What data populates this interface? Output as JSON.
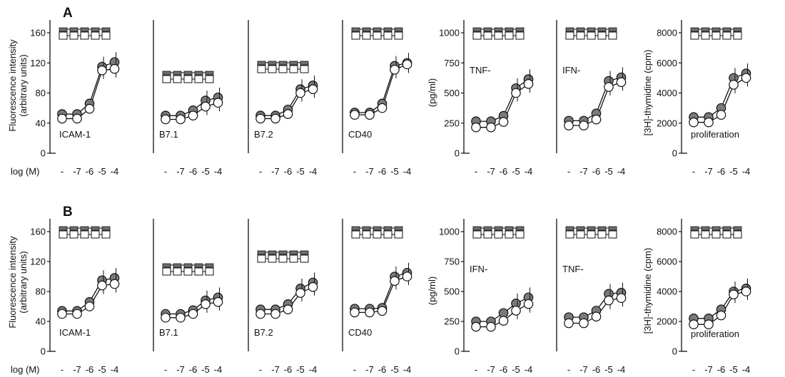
{
  "xlabel_prefix": "log (M)",
  "x_tick_labels": [
    "-",
    "-7",
    "-6",
    "-5",
    "-4"
  ],
  "row_labels": [
    "A",
    "B"
  ],
  "y_axis_labels": {
    "fluorescence_line1": "Fluorescence intensity",
    "fluorescence_line2": "(arbitrary units)",
    "cytokine": "(pg/ml)",
    "thymidine": "[3H]-thymidine (cpm)"
  },
  "chart_data": [
    {
      "type": "line",
      "row": "A",
      "panel_label": "ICAM-1",
      "ylim": [
        0,
        160
      ],
      "ytick_labels": [
        "0",
        "40",
        "80",
        "120",
        "160"
      ],
      "x": [
        "-",
        "-7",
        "-6",
        "-5",
        "-4"
      ],
      "series": [
        {
          "marker": "filled-circle",
          "values": [
            52,
            52,
            66,
            115,
            121
          ]
        },
        {
          "marker": "open-circle",
          "values": [
            46,
            46,
            59,
            110,
            112
          ]
        }
      ],
      "box_row": {
        "filled": [
          1,
          1,
          1,
          1,
          1
        ],
        "open": [
          1,
          1,
          1,
          1,
          1
        ]
      }
    },
    {
      "type": "line",
      "row": "A",
      "panel_label": "B7.1",
      "ylim": [
        0,
        160
      ],
      "ytick_labels": [
        "0",
        "40",
        "80",
        "120",
        "160"
      ],
      "x": [
        "-",
        "-7",
        "-6",
        "-5",
        "-4"
      ],
      "series": [
        {
          "marker": "filled-circle",
          "values": [
            50,
            50,
            57,
            70,
            74
          ]
        },
        {
          "marker": "open-circle",
          "values": [
            45,
            45,
            50,
            62,
            67
          ]
        }
      ],
      "box_row": {
        "filled": [
          1,
          1,
          1,
          1,
          1
        ],
        "open": [
          1,
          1,
          1,
          1,
          1
        ]
      }
    },
    {
      "type": "line",
      "row": "A",
      "panel_label": "B7.2",
      "ylim": [
        0,
        160
      ],
      "ytick_labels": [
        "0",
        "40",
        "80",
        "120",
        "160"
      ],
      "x": [
        "-",
        "-7",
        "-6",
        "-5",
        "-4"
      ],
      "series": [
        {
          "marker": "filled-circle",
          "values": [
            50,
            50,
            58,
            85,
            90
          ]
        },
        {
          "marker": "open-circle",
          "values": [
            46,
            46,
            52,
            80,
            85
          ]
        }
      ],
      "box_row": {
        "filled": [
          1,
          1,
          1,
          1,
          1
        ],
        "open": [
          1,
          1,
          1,
          1,
          1
        ]
      }
    },
    {
      "type": "line",
      "row": "A",
      "panel_label": "CD40",
      "ylim": [
        0,
        160
      ],
      "ytick_labels": [
        "0",
        "40",
        "80",
        "120",
        "160"
      ],
      "x": [
        "-",
        "-7",
        "-6",
        "-5",
        "-4"
      ],
      "series": [
        {
          "marker": "filled-circle",
          "values": [
            54,
            54,
            66,
            116,
            120
          ]
        },
        {
          "marker": "open-circle",
          "values": [
            51,
            51,
            60,
            111,
            118
          ]
        }
      ],
      "box_row": {
        "filled": [
          1,
          1,
          1,
          1,
          1
        ],
        "open": [
          1,
          1,
          1,
          1,
          1
        ]
      }
    },
    {
      "type": "line",
      "row": "A",
      "panel_label": "TNF-",
      "ylim": [
        0,
        1000
      ],
      "ytick_labels": [
        "0",
        "250",
        "500",
        "750",
        "1000"
      ],
      "x": [
        "-",
        "-7",
        "-6",
        "-5",
        "-4"
      ],
      "series": [
        {
          "marker": "filled-circle",
          "values": [
            265,
            265,
            310,
            540,
            615
          ]
        },
        {
          "marker": "open-circle",
          "values": [
            215,
            215,
            260,
            500,
            575
          ]
        }
      ],
      "box_row": {
        "filled": [
          1,
          1,
          1,
          1,
          1
        ],
        "open": [
          1,
          1,
          1,
          1,
          1
        ]
      }
    },
    {
      "type": "line",
      "row": "A",
      "panel_label": "IFN-",
      "ylim": [
        0,
        1000
      ],
      "ytick_labels": [
        "0",
        "250",
        "500",
        "750",
        "1000"
      ],
      "x": [
        "-",
        "-7",
        "-6",
        "-5",
        "-4"
      ],
      "series": [
        {
          "marker": "filled-circle",
          "values": [
            270,
            270,
            330,
            600,
            630
          ]
        },
        {
          "marker": "open-circle",
          "values": [
            230,
            230,
            280,
            550,
            590
          ]
        }
      ],
      "box_row": {
        "filled": [
          1,
          1,
          1,
          1,
          1
        ],
        "open": [
          1,
          1,
          1,
          1,
          1
        ]
      }
    },
    {
      "type": "line",
      "row": "A",
      "panel_label": "proliferation",
      "ylim": [
        0,
        8000
      ],
      "ytick_labels": [
        "0",
        "2000",
        "4000",
        "6000",
        "8000"
      ],
      "x": [
        "-",
        "-7",
        "-6",
        "-5",
        "-4"
      ],
      "series": [
        {
          "marker": "filled-circle",
          "values": [
            2400,
            2400,
            3000,
            5000,
            5300
          ]
        },
        {
          "marker": "open-circle",
          "values": [
            2050,
            2050,
            2550,
            4550,
            5000
          ]
        }
      ],
      "box_row": {
        "filled": [
          1,
          1,
          1,
          1,
          1
        ],
        "open": [
          1,
          1,
          1,
          1,
          1
        ]
      }
    },
    {
      "type": "line",
      "row": "B",
      "panel_label": "ICAM-1",
      "ylim": [
        0,
        160
      ],
      "ytick_labels": [
        "0",
        "40",
        "80",
        "120",
        "160"
      ],
      "x": [
        "-",
        "-7",
        "-6",
        "-5",
        "-4"
      ],
      "series": [
        {
          "marker": "filled-circle",
          "values": [
            54,
            54,
            66,
            95,
            98
          ]
        },
        {
          "marker": "open-circle",
          "values": [
            50,
            50,
            60,
            88,
            90
          ]
        }
      ],
      "box_row": {
        "filled": [
          1,
          1,
          1,
          1,
          1
        ],
        "open": [
          1,
          1,
          1,
          1,
          1
        ]
      }
    },
    {
      "type": "line",
      "row": "B",
      "panel_label": "B7.1",
      "ylim": [
        0,
        160
      ],
      "ytick_labels": [
        "0",
        "40",
        "80",
        "120",
        "160"
      ],
      "x": [
        "-",
        "-7",
        "-6",
        "-5",
        "-4"
      ],
      "series": [
        {
          "marker": "filled-circle",
          "values": [
            50,
            50,
            55,
            68,
            72
          ]
        },
        {
          "marker": "open-circle",
          "values": [
            45,
            45,
            50,
            63,
            66
          ]
        }
      ],
      "box_row": {
        "filled": [
          1,
          1,
          1,
          1,
          1
        ],
        "open": [
          1,
          1,
          1,
          1,
          1
        ]
      }
    },
    {
      "type": "line",
      "row": "B",
      "panel_label": "B7.2",
      "ylim": [
        0,
        160
      ],
      "ytick_labels": [
        "0",
        "40",
        "80",
        "120",
        "160"
      ],
      "x": [
        "-",
        "-7",
        "-6",
        "-5",
        "-4"
      ],
      "series": [
        {
          "marker": "filled-circle",
          "values": [
            56,
            56,
            63,
            84,
            92
          ]
        },
        {
          "marker": "open-circle",
          "values": [
            50,
            50,
            56,
            78,
            86
          ]
        }
      ],
      "box_row": {
        "filled": [
          1,
          1,
          1,
          1,
          1
        ],
        "open": [
          1,
          1,
          1,
          1,
          1
        ]
      }
    },
    {
      "type": "line",
      "row": "B",
      "panel_label": "CD40",
      "ylim": [
        0,
        160
      ],
      "ytick_labels": [
        "0",
        "40",
        "80",
        "120",
        "160"
      ],
      "x": [
        "-",
        "-7",
        "-6",
        "-5",
        "-4"
      ],
      "series": [
        {
          "marker": "filled-circle",
          "values": [
            57,
            57,
            58,
            100,
            105
          ]
        },
        {
          "marker": "open-circle",
          "values": [
            52,
            52,
            54,
            94,
            100
          ]
        }
      ],
      "box_row": {
        "filled": [
          1,
          1,
          1,
          1,
          1
        ],
        "open": [
          1,
          1,
          1,
          1,
          1
        ]
      }
    },
    {
      "type": "line",
      "row": "B",
      "panel_label": "IFN-",
      "ylim": [
        0,
        1000
      ],
      "ytick_labels": [
        "0",
        "250",
        "500",
        "750",
        "1000"
      ],
      "x": [
        "-",
        "-7",
        "-6",
        "-5",
        "-4"
      ],
      "series": [
        {
          "marker": "filled-circle",
          "values": [
            250,
            250,
            320,
            400,
            450
          ]
        },
        {
          "marker": "open-circle",
          "values": [
            205,
            205,
            255,
            340,
            395
          ]
        }
      ],
      "box_row": {
        "filled": [
          1,
          1,
          1,
          1,
          1
        ],
        "open": [
          1,
          1,
          1,
          1,
          1
        ]
      }
    },
    {
      "type": "line",
      "row": "B",
      "panel_label": "TNF-",
      "ylim": [
        0,
        1000
      ],
      "ytick_labels": [
        "0",
        "250",
        "500",
        "750",
        "1000"
      ],
      "x": [
        "-",
        "-7",
        "-6",
        "-5",
        "-4"
      ],
      "series": [
        {
          "marker": "filled-circle",
          "values": [
            285,
            285,
            340,
            480,
            490
          ]
        },
        {
          "marker": "open-circle",
          "values": [
            235,
            235,
            290,
            425,
            445
          ]
        }
      ],
      "box_row": {
        "filled": [
          1,
          1,
          1,
          1,
          1
        ],
        "open": [
          1,
          1,
          1,
          1,
          1
        ]
      }
    },
    {
      "type": "line",
      "row": "B",
      "panel_label": "proliferation",
      "ylim": [
        0,
        8000
      ],
      "ytick_labels": [
        "0",
        "2000",
        "4000",
        "6000",
        "8000"
      ],
      "x": [
        "-",
        "-7",
        "-6",
        "-5",
        "-4"
      ],
      "series": [
        {
          "marker": "filled-circle",
          "values": [
            2200,
            2200,
            2800,
            4000,
            4200
          ]
        },
        {
          "marker": "open-circle",
          "values": [
            1800,
            1800,
            2400,
            3800,
            4000
          ]
        }
      ],
      "box_row": {
        "filled": [
          1,
          1,
          1,
          1,
          1
        ],
        "open": [
          1,
          1,
          1,
          1,
          1
        ]
      }
    }
  ],
  "colors": {
    "axis": "#111111",
    "filled_marker": "#7a7a7a",
    "open_marker": "#ffffff",
    "line": "#111111",
    "box_filled": "#6e6e6e"
  }
}
